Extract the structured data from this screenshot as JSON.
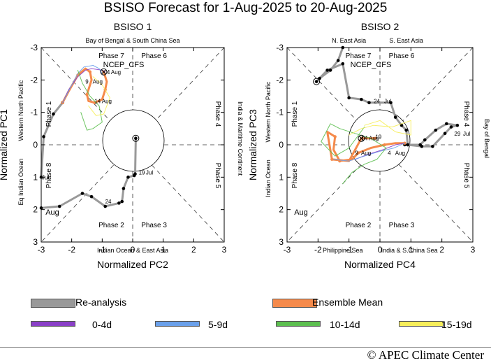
{
  "title": "BSISO Forecast for 1-Aug-2025 to 20-Aug-2025",
  "copyright": "© APEC Climate Center",
  "legend": [
    {
      "label": "Re-analysis",
      "color": "#999999"
    },
    {
      "label": "Ensemble Mean",
      "color": "#f58a4b"
    },
    {
      "label": "0-4d",
      "color": "#8a3fc7"
    },
    {
      "label": "5-9d",
      "color": "#6aa0ea"
    },
    {
      "label": "10-14d",
      "color": "#5cbf4f"
    },
    {
      "label": "15-19d",
      "color": "#f6ee5a"
    }
  ],
  "chart_data": [
    {
      "type": "line",
      "title": "BSISO 1",
      "xlabel": "Normalized PC2",
      "ylabel": "Normalized PC1",
      "xlim": [
        -3,
        3
      ],
      "ylim": [
        3,
        -3
      ],
      "xticks": [
        "-3",
        "-2",
        "-1",
        "0",
        "1",
        "2",
        "3"
      ],
      "yticks": [
        "-3",
        "-2",
        "-1",
        "0",
        "1",
        "2",
        "3"
      ],
      "model_label": "NCEP_CFS",
      "month_label": "Aug",
      "regions": {
        "top": "Bay of Bengal & South China Sea",
        "bottom": "Indian Ocean & East Asia",
        "left_outer": "Eq Indian Ocean",
        "left_inner": "Western North Pacific",
        "right": "India & Maritime Continent"
      },
      "phases": [
        "Phase 7",
        "Phase 6",
        "Phase 5",
        "Phase 4",
        "Phase 3",
        "Phase 2",
        "Phase 1",
        "Phase 8"
      ],
      "annotations": [
        "24",
        "19",
        "Jul",
        "14",
        "Aug",
        "9",
        "Aug",
        "4",
        "Aug"
      ],
      "series": [
        {
          "name": "Re-analysis",
          "x": [
            -3.0,
            -2.4,
            -1.65,
            -1.35,
            -0.9,
            -0.45,
            -0.35,
            -0.3,
            -0.15,
            0.05,
            0.08,
            0.1
          ],
          "y": [
            -1.95,
            -1.9,
            -1.5,
            -1.6,
            -1.9,
            -1.8,
            -1.75,
            -1.35,
            -1.0,
            -0.95,
            -0.9,
            0.2
          ]
        },
        {
          "name": "Re-analysis (end of Jul)",
          "x": [
            -3.0,
            -2.92,
            -2.6,
            -2.3
          ],
          "y": [
            -1.0,
            0.25,
            0.95,
            1.3
          ]
        },
        {
          "name": "Ensemble Mean",
          "x": [
            -2.3,
            -2.1,
            -1.8,
            -1.55,
            -1.4,
            -1.35,
            -1.5,
            -1.45,
            -1.25,
            -1.0,
            -0.9,
            -0.85,
            -0.95
          ],
          "y": [
            1.3,
            1.65,
            2.15,
            2.35,
            2.25,
            2.0,
            1.55,
            1.35,
            1.3,
            1.4,
            1.7,
            1.95,
            2.25
          ]
        },
        {
          "name": "0-4d",
          "x": [
            -2.3,
            -2.1,
            -1.8,
            -1.55,
            -1.35,
            -1.0,
            -0.9
          ],
          "y": [
            1.3,
            1.7,
            2.1,
            2.3,
            2.35,
            2.3,
            2.25
          ]
        },
        {
          "name": "5-9d",
          "x": [
            -2.3,
            -2.05,
            -1.8,
            -1.6,
            -1.3,
            -1.1,
            -1.0
          ],
          "y": [
            1.3,
            1.75,
            2.2,
            2.4,
            2.45,
            2.35,
            2.2
          ]
        },
        {
          "name": "10-14d",
          "x": [
            -1.7,
            -1.5,
            -1.3,
            -1.0,
            -1.1,
            -1.4,
            -1.65,
            -1.8
          ],
          "y": [
            1.0,
            0.45,
            0.5,
            0.7,
            1.2,
            1.5,
            1.9,
            2.3
          ]
        },
        {
          "name": "15-19d",
          "x": [
            -1.45,
            -1.2,
            -0.95,
            -0.75,
            -1.0,
            -1.3
          ],
          "y": [
            1.2,
            0.9,
            0.95,
            1.45,
            1.85,
            2.1
          ]
        }
      ]
    },
    {
      "type": "line",
      "title": "BSISO 2",
      "xlabel": "Normalized PC4",
      "ylabel": "Normalized PC3",
      "xlim": [
        -3,
        3
      ],
      "ylim": [
        3,
        -3
      ],
      "xticks": [
        "-3",
        "-2",
        "-1",
        "0",
        "1",
        "2",
        "3"
      ],
      "yticks": [
        "-3",
        "-2",
        "-1",
        "0",
        "1",
        "2",
        "3"
      ],
      "model_label": "NCEP_CFS",
      "month_label": "Aug",
      "regions": {
        "top_left": "N. East Asia",
        "top_right": "S. East Asia",
        "bottom_left": "Philippine Sea",
        "bottom_right": "India & S.China Sea",
        "left_outer": "Indian Ocean",
        "left_inner": "Western North Pacific",
        "right": "Bay of Bengal"
      },
      "phases": [
        "Phase 7",
        "Phase 6",
        "Phase 5",
        "Phase 4",
        "Phase 3",
        "Phase 2",
        "Phase 1",
        "Phase 8"
      ],
      "annotations": [
        "29",
        "Jul",
        "24",
        "Jul",
        "9",
        "Aug",
        "4",
        "Aug",
        "14",
        "Aug",
        "19"
      ],
      "series": [
        {
          "name": "Re-analysis",
          "x": [
            -1.2,
            -1.35,
            -1.6,
            -1.95,
            -2.05,
            -1.7,
            -1.2,
            -1.0,
            -0.6,
            -0.35,
            0.35,
            0.5,
            0.7,
            0.85,
            0.9,
            1.35,
            1.7,
            2.1,
            2.3,
            2.5,
            2.15,
            1.8,
            1.45,
            1.3,
            0.9,
            0.8
          ],
          "y": [
            3.0,
            2.6,
            2.3,
            2.05,
            1.95,
            2.3,
            2.5,
            1.45,
            1.4,
            1.3,
            1.3,
            0.85,
            0.6,
            0.45,
            0.0,
            -0.05,
            -0.05,
            0.35,
            0.55,
            0.6,
            0.65,
            0.45,
            0.15,
            0.0,
            0.0,
            0.0
          ]
        },
        {
          "name": "Ensemble Mean",
          "x": [
            0.8,
            0.5,
            0.15,
            -0.3,
            -0.7,
            -0.9,
            -1.3,
            -1.5,
            -1.45,
            -1.7,
            -1.55,
            -1.0,
            -0.6,
            -0.35,
            -0.15
          ],
          "y": [
            0.05,
            0.05,
            0.0,
            -0.1,
            -0.25,
            -0.45,
            -0.5,
            -0.15,
            0.25,
            0.4,
            -0.45,
            -0.5,
            0.2,
            0.2,
            0.2
          ]
        },
        {
          "name": "0-4d",
          "x": [
            0.8,
            0.5,
            0.1,
            -0.4,
            -0.8
          ],
          "y": [
            0.05,
            0.0,
            -0.15,
            -0.3,
            -0.45
          ]
        },
        {
          "name": "5-9d",
          "x": [
            0.8,
            0.45,
            0.0,
            -0.5,
            -1.0,
            -1.5
          ],
          "y": [
            0.05,
            -0.1,
            -0.2,
            -0.35,
            -0.5,
            -0.45
          ]
        },
        {
          "name": "10-14d",
          "x": [
            -1.2,
            -0.9,
            -0.5,
            -0.1,
            0.2,
            -0.3,
            -0.8,
            -1.3,
            -1.6,
            -1.9,
            -1.45,
            -1.0,
            -0.5
          ],
          "y": [
            -1.2,
            -0.85,
            -0.6,
            -0.45,
            -0.1,
            0.2,
            0.35,
            0.5,
            0.65,
            0.1,
            -0.35,
            -0.1,
            0.55
          ]
        },
        {
          "name": "15-19d",
          "x": [
            -1.0,
            -0.6,
            -0.2,
            0.4,
            1.0,
            1.0,
            0.5,
            0.0,
            -0.5
          ],
          "y": [
            0.3,
            0.5,
            0.6,
            0.55,
            0.75,
            0.3,
            0.4,
            0.75,
            0.6
          ]
        }
      ]
    }
  ]
}
